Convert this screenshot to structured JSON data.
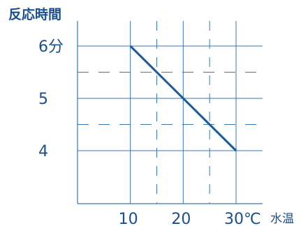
{
  "colors": {
    "ink": "#1a4f8f",
    "line": "#1a5a9e",
    "grid": "#3a75b5"
  },
  "chart_data": {
    "type": "line",
    "ylabel": "反応時間",
    "xlabel": "水温",
    "xlim": [
      0,
      30
    ],
    "ylim": [
      3,
      6
    ],
    "x_ticks": [
      {
        "value": 10,
        "label": "10"
      },
      {
        "value": 20,
        "label": "20"
      },
      {
        "value": 30,
        "label": "30℃"
      }
    ],
    "y_ticks": [
      {
        "value": 6,
        "label": "6分"
      },
      {
        "value": 5,
        "label": "5"
      },
      {
        "value": 4,
        "label": "4"
      }
    ],
    "x_grid_solid": [
      10,
      20,
      30
    ],
    "x_grid_dashed": [
      15,
      25
    ],
    "y_grid_solid": [
      6,
      5,
      4
    ],
    "y_grid_dashed": [
      5.5,
      4.5
    ],
    "grid": true,
    "series": [
      {
        "x": [
          10,
          30
        ],
        "y": [
          6,
          4
        ]
      }
    ]
  }
}
